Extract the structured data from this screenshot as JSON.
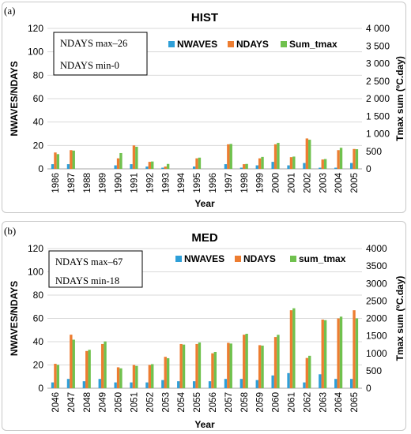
{
  "chart_data": [
    {
      "type": "bar",
      "panel_label": "(a)",
      "title": "HIST",
      "xlabel": "Year",
      "ylabel": "NWAVES/NDAYS",
      "y2label": "Tmax sum (ºC.day)",
      "ylim": [
        0,
        120
      ],
      "y_ticks": [
        "0",
        "20",
        "40",
        "60",
        "80",
        "100",
        "120"
      ],
      "y2lim": [
        0,
        4000
      ],
      "y2_ticks": [
        "0",
        "500",
        "1 000",
        "1 500",
        "2 000",
        "2 500",
        "3 000",
        "3 500",
        "4 000"
      ],
      "annotation": [
        "NDAYS max–26",
        "NDAYS min-0"
      ],
      "legend_position": "top-right",
      "grid": "horizontal",
      "categories": [
        "1986",
        "1987",
        "1988",
        "1989",
        "1990",
        "1991",
        "1992",
        "1993",
        "1994",
        "1995",
        "1996",
        "1997",
        "1998",
        "1999",
        "2000",
        "2001",
        "2002",
        "2003",
        "2004",
        "2005"
      ],
      "series": [
        {
          "name": "NWAVES",
          "axis": "left",
          "color": "#2e9fd8",
          "values": [
            4,
            4,
            0,
            0,
            3,
            4,
            2,
            1,
            0,
            2,
            0,
            4,
            1,
            3,
            6,
            3,
            5,
            1,
            1,
            5
          ]
        },
        {
          "name": "NDAYS",
          "axis": "left",
          "color": "#ed7d31",
          "values": [
            14,
            16,
            0,
            0,
            9,
            20,
            6,
            2,
            0,
            9,
            0,
            21,
            4,
            9,
            21,
            10,
            26,
            8,
            16,
            17
          ]
        },
        {
          "name": "Sum_tmax",
          "axis": "right",
          "color": "#70c14e",
          "values": [
            420,
            520,
            0,
            0,
            450,
            630,
            210,
            140,
            0,
            320,
            0,
            710,
            140,
            340,
            740,
            350,
            830,
            280,
            600,
            560
          ]
        }
      ]
    },
    {
      "type": "bar",
      "panel_label": "(b)",
      "title": "MED",
      "xlabel": "Year",
      "ylabel": "NWAVES/NDAYS",
      "y2label": "Tmax sum (ºC.day)",
      "ylim": [
        0,
        120
      ],
      "y_ticks": [
        "0",
        "20",
        "40",
        "60",
        "80",
        "100",
        "120"
      ],
      "y2lim": [
        0,
        4000
      ],
      "y2_ticks": [
        "0",
        "500",
        "1000",
        "1500",
        "2000",
        "2500",
        "3000",
        "3500",
        "4000"
      ],
      "annotation": [
        "NDAYS max–67",
        "NDAYS min-18"
      ],
      "legend_position": "top-right",
      "grid": "horizontal",
      "categories": [
        "2046",
        "2047",
        "2048",
        "2049",
        "2050",
        "2051",
        "2052",
        "2053",
        "2054",
        "2055",
        "2056",
        "2057",
        "2058",
        "2059",
        "2060",
        "2061",
        "2062",
        "2063",
        "2064",
        "2065"
      ],
      "series": [
        {
          "name": "NWAVES",
          "axis": "left",
          "color": "#2e9fd8",
          "values": [
            5,
            8,
            6,
            8,
            5,
            5,
            5,
            7,
            6,
            6,
            6,
            8,
            8,
            7,
            11,
            13,
            5,
            12,
            8,
            8
          ]
        },
        {
          "name": "NDAYS",
          "axis": "left",
          "color": "#ed7d31",
          "values": [
            21,
            46,
            32,
            38,
            18,
            20,
            20,
            27,
            38,
            38,
            30,
            39,
            46,
            37,
            44,
            67,
            26,
            59,
            60,
            67
          ]
        },
        {
          "name": "sum_tmax",
          "axis": "right",
          "color": "#70c14e",
          "values": [
            670,
            1390,
            1100,
            1340,
            570,
            640,
            690,
            860,
            1250,
            1310,
            1040,
            1280,
            1560,
            1220,
            1530,
            2290,
            930,
            1950,
            2050,
            2000
          ]
        }
      ]
    }
  ]
}
